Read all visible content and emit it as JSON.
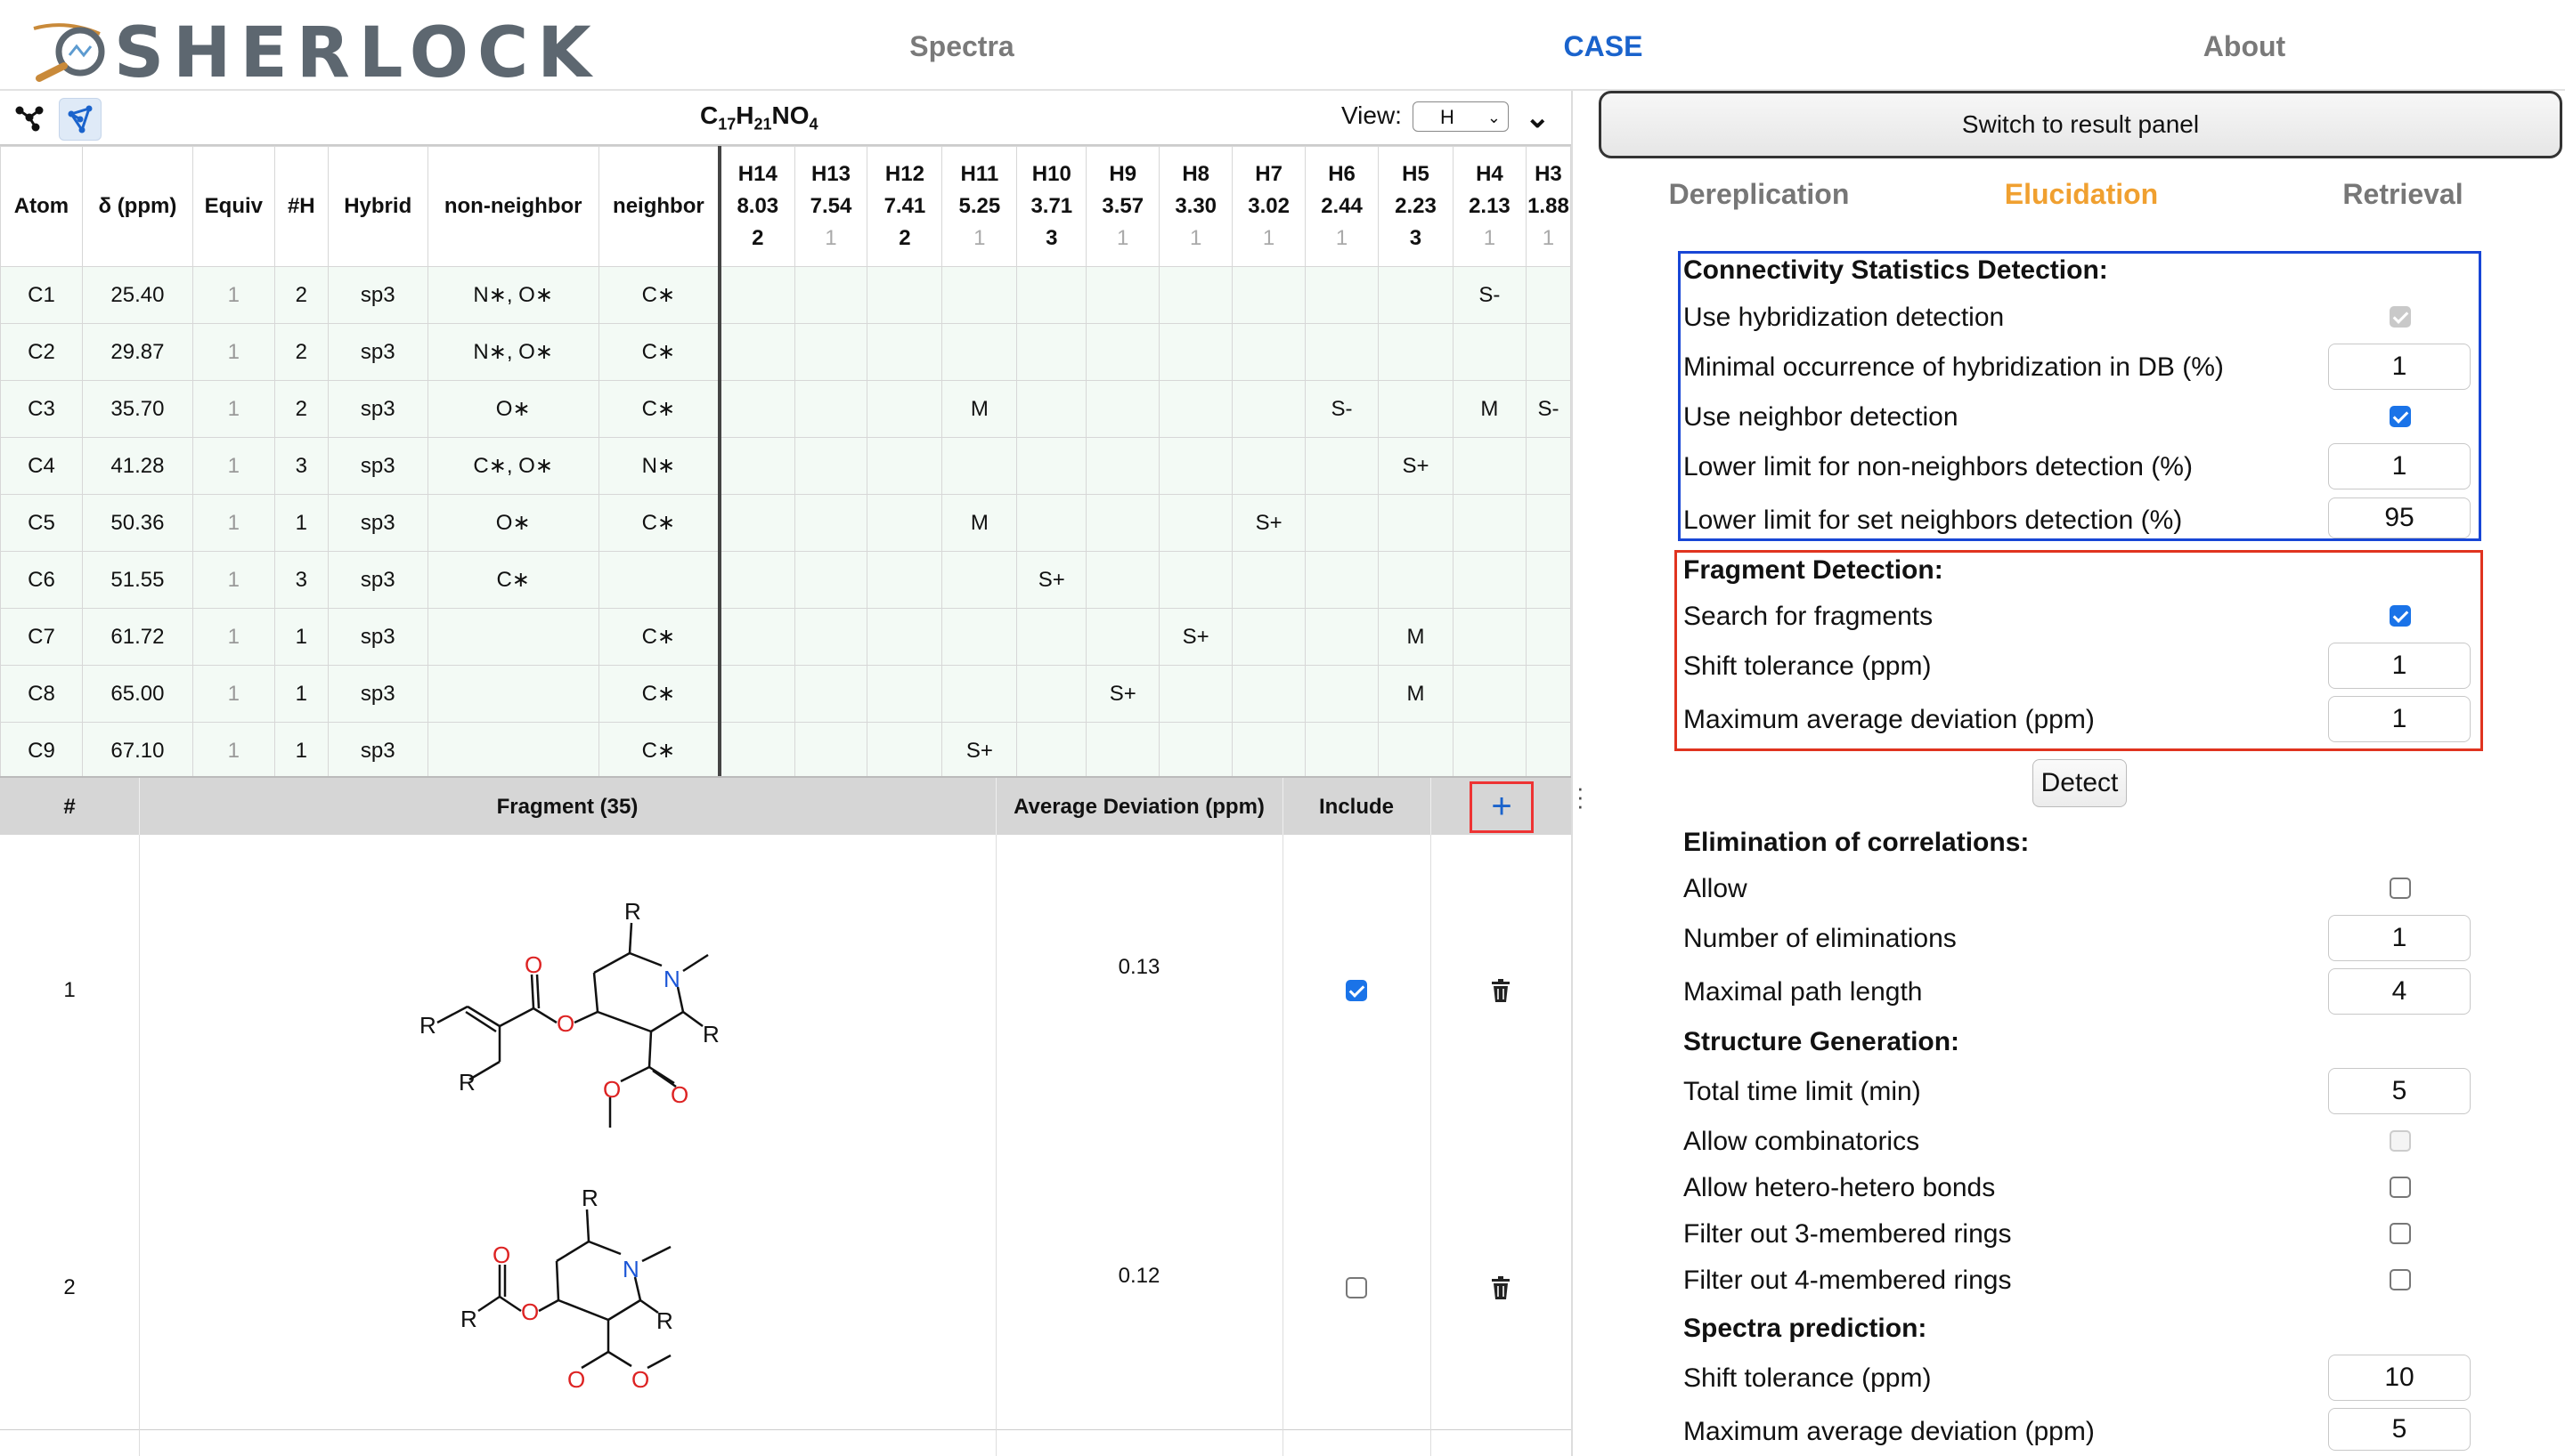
{
  "app": {
    "logo_text": "SHERLOCK",
    "nav": [
      {
        "label": "Spectra",
        "active": false
      },
      {
        "label": "CASE",
        "active": true
      },
      {
        "label": "About",
        "active": false
      }
    ],
    "colors": {
      "active_nav": "#1a63cc",
      "active_subtab": "#f0a030",
      "highlight_blue": "#1846d6",
      "highlight_red": "#e0331f"
    }
  },
  "toolbar": {
    "formula": {
      "C": "17",
      "H": "21",
      "N": "",
      "O": "4"
    },
    "view_label": "View:",
    "view_value": "H",
    "icons": [
      "graph-icon",
      "network-icon",
      "chevron-down-icon"
    ]
  },
  "correlation_table": {
    "fixed_headers": [
      "Atom",
      "δ (ppm)",
      "Equiv",
      "#H",
      "Hybrid",
      "non-neighbor",
      "neighbor"
    ],
    "h_columns": [
      {
        "atom": "H14",
        "shift": "8.03",
        "count": "2"
      },
      {
        "atom": "H13",
        "shift": "7.54",
        "count": "1"
      },
      {
        "atom": "H12",
        "shift": "7.41",
        "count": "2"
      },
      {
        "atom": "H11",
        "shift": "5.25",
        "count": "1"
      },
      {
        "atom": "H10",
        "shift": "3.71",
        "count": "3"
      },
      {
        "atom": "H9",
        "shift": "3.57",
        "count": "1"
      },
      {
        "atom": "H8",
        "shift": "3.30",
        "count": "1"
      },
      {
        "atom": "H7",
        "shift": "3.02",
        "count": "1"
      },
      {
        "atom": "H6",
        "shift": "2.44",
        "count": "1"
      },
      {
        "atom": "H5",
        "shift": "2.23",
        "count": "3"
      },
      {
        "atom": "H4",
        "shift": "2.13",
        "count": "1"
      },
      {
        "atom": "H3",
        "shift": "1.88",
        "count": "1"
      }
    ],
    "rows": [
      {
        "atom": "C1",
        "shift": "25.40",
        "equiv": "1",
        "nh": "2",
        "hybrid": "sp3",
        "non_neighbor": "N∗, O∗",
        "neighbor": "C∗",
        "h": [
          "",
          "",
          "",
          "",
          "",
          "",
          "",
          "",
          "",
          "",
          "S-",
          ""
        ]
      },
      {
        "atom": "C2",
        "shift": "29.87",
        "equiv": "1",
        "nh": "2",
        "hybrid": "sp3",
        "non_neighbor": "N∗, O∗",
        "neighbor": "C∗",
        "h": [
          "",
          "",
          "",
          "",
          "",
          "",
          "",
          "",
          "",
          "",
          "",
          ""
        ]
      },
      {
        "atom": "C3",
        "shift": "35.70",
        "equiv": "1",
        "nh": "2",
        "hybrid": "sp3",
        "non_neighbor": "O∗",
        "neighbor": "C∗",
        "h": [
          "",
          "",
          "",
          "M",
          "",
          "",
          "",
          "",
          "S-",
          "",
          "M",
          "S-"
        ]
      },
      {
        "atom": "C4",
        "shift": "41.28",
        "equiv": "1",
        "nh": "3",
        "hybrid": "sp3",
        "non_neighbor": "C∗, O∗",
        "neighbor": "N∗",
        "h": [
          "",
          "",
          "",
          "",
          "",
          "",
          "",
          "",
          "",
          "S+",
          "",
          ""
        ]
      },
      {
        "atom": "C5",
        "shift": "50.36",
        "equiv": "1",
        "nh": "1",
        "hybrid": "sp3",
        "non_neighbor": "O∗",
        "neighbor": "C∗",
        "h": [
          "",
          "",
          "",
          "M",
          "",
          "",
          "",
          "S+",
          "",
          "",
          "",
          ""
        ]
      },
      {
        "atom": "C6",
        "shift": "51.55",
        "equiv": "1",
        "nh": "3",
        "hybrid": "sp3",
        "non_neighbor": "C∗",
        "neighbor": "",
        "h": [
          "",
          "",
          "",
          "",
          "S+",
          "",
          "",
          "",
          "",
          "",
          "",
          ""
        ]
      },
      {
        "atom": "C7",
        "shift": "61.72",
        "equiv": "1",
        "nh": "1",
        "hybrid": "sp3",
        "non_neighbor": "",
        "neighbor": "C∗",
        "h": [
          "",
          "",
          "",
          "",
          "",
          "",
          "S+",
          "",
          "",
          "M",
          "",
          ""
        ]
      },
      {
        "atom": "C8",
        "shift": "65.00",
        "equiv": "1",
        "nh": "1",
        "hybrid": "sp3",
        "non_neighbor": "",
        "neighbor": "C∗",
        "h": [
          "",
          "",
          "",
          "",
          "",
          "S+",
          "",
          "",
          "",
          "M",
          "",
          ""
        ]
      },
      {
        "atom": "C9",
        "shift": "67.10",
        "equiv": "1",
        "nh": "1",
        "hybrid": "sp3",
        "non_neighbor": "",
        "neighbor": "C∗",
        "h": [
          "",
          "",
          "",
          "S+",
          "",
          "",
          "",
          "",
          "",
          "",
          "",
          ""
        ]
      }
    ]
  },
  "fragments": {
    "headers": {
      "num": "#",
      "fragment": "Fragment (35)",
      "avg_dev": "Average Deviation (ppm)",
      "include": "Include",
      "add": "+"
    },
    "rows": [
      {
        "index": "1",
        "avg_dev": "0.13",
        "include": true
      },
      {
        "index": "2",
        "avg_dev": "0.12",
        "include": false
      }
    ],
    "atom_labels": {
      "R": "R",
      "N": "N",
      "O": "O"
    }
  },
  "right_panel": {
    "switch_button": "Switch to result panel",
    "tabs": [
      {
        "label": "Dereplication",
        "active": false
      },
      {
        "label": "Elucidation",
        "active": true
      },
      {
        "label": "Retrieval",
        "active": false
      }
    ],
    "connectivity": {
      "title": "Connectivity Statistics Detection:",
      "use_hybridization": {
        "label": "Use hybridization detection",
        "checked": true,
        "disabled": true
      },
      "min_occurrence": {
        "label": "Minimal occurrence of hybridization in DB (%)",
        "value": "1"
      },
      "use_neighbor": {
        "label": "Use neighbor detection",
        "checked": true
      },
      "lower_non_neighbors": {
        "label": "Lower limit for non-neighbors detection (%)",
        "value": "1"
      },
      "lower_set_neighbors": {
        "label": "Lower limit for set neighbors detection (%)",
        "value": "95"
      }
    },
    "fragment_detection": {
      "title": "Fragment Detection:",
      "search": {
        "label": "Search for fragments",
        "checked": true
      },
      "shift_tol": {
        "label": "Shift tolerance (ppm)",
        "value": "1"
      },
      "max_dev": {
        "label": "Maximum average deviation (ppm)",
        "value": "1"
      }
    },
    "detect_button": "Detect",
    "elimination": {
      "title": "Elimination of correlations:",
      "allow": {
        "label": "Allow",
        "checked": false
      },
      "num_elim": {
        "label": "Number of eliminations",
        "value": "1"
      },
      "max_path": {
        "label": "Maximal path length",
        "value": "4"
      }
    },
    "generation": {
      "title": "Structure Generation:",
      "time_limit": {
        "label": "Total time limit (min)",
        "value": "5"
      },
      "combinatorics": {
        "label": "Allow combinatorics",
        "checked": false,
        "disabled": true
      },
      "hetero_bonds": {
        "label": "Allow hetero-hetero bonds",
        "checked": false
      },
      "filter3": {
        "label": "Filter out 3-membered rings",
        "checked": false
      },
      "filter4": {
        "label": "Filter out 4-membered rings",
        "checked": false
      }
    },
    "prediction": {
      "title": "Spectra prediction:",
      "shift_tol": {
        "label": "Shift tolerance (ppm)",
        "value": "10"
      },
      "max_dev": {
        "label": "Maximum average deviation (ppm)",
        "value": "5"
      }
    }
  }
}
